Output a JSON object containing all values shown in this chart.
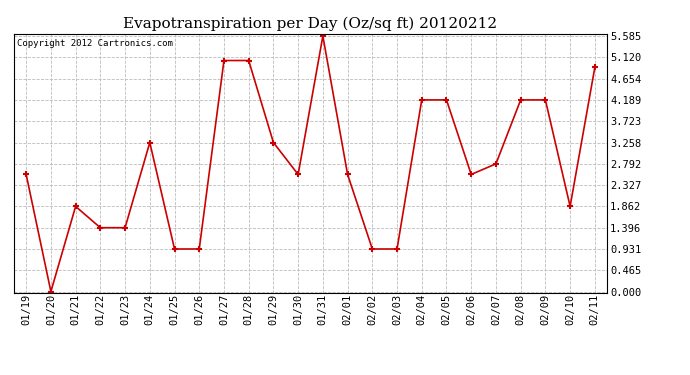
{
  "title": "Evapotranspiration per Day (Oz/sq ft) 20120212",
  "copyright": "Copyright 2012 Cartronics.com",
  "x_labels": [
    "01/19",
    "01/20",
    "01/21",
    "01/22",
    "01/23",
    "01/24",
    "01/25",
    "01/26",
    "01/27",
    "01/28",
    "01/29",
    "01/30",
    "01/31",
    "02/01",
    "02/02",
    "02/03",
    "02/04",
    "02/05",
    "02/06",
    "02/07",
    "02/08",
    "02/09",
    "02/10",
    "02/11"
  ],
  "y_values": [
    2.56,
    0.0,
    1.862,
    1.396,
    1.396,
    3.258,
    0.931,
    0.931,
    5.05,
    5.05,
    3.258,
    2.56,
    5.585,
    2.56,
    0.931,
    0.931,
    4.189,
    4.189,
    2.56,
    2.792,
    4.189,
    4.189,
    1.862,
    4.9
  ],
  "y_ticks": [
    0.0,
    0.465,
    0.931,
    1.396,
    1.862,
    2.327,
    2.792,
    3.258,
    3.723,
    4.189,
    4.654,
    5.12,
    5.585
  ],
  "line_color": "#cc0000",
  "marker_color": "#cc0000",
  "grid_color": "#bbbbbb",
  "background_color": "#ffffff",
  "y_min": 0.0,
  "y_max": 5.585,
  "title_fontsize": 11,
  "tick_fontsize": 7.5,
  "copyright_fontsize": 6.5
}
